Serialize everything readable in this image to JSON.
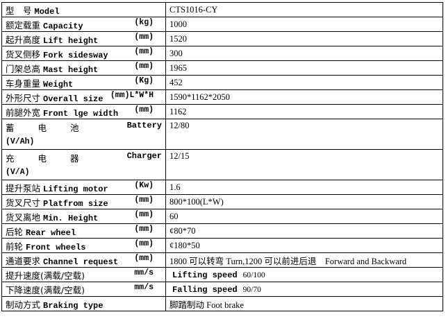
{
  "table": {
    "rows": [
      {
        "cn": "型　号",
        "en": "Model",
        "value": "CTS1016-CY"
      },
      {
        "cn": "额定载重",
        "en": "Capacity",
        "unit": "(kg)",
        "value": "1000"
      },
      {
        "cn": "起升高度",
        "en": "Lift height",
        "unit": "(mm)",
        "value": "1520"
      },
      {
        "cn": "货叉侧移",
        "en": "Fork sidesway",
        "unit": "(mm)",
        "value": "300"
      },
      {
        "cn": "门架总高",
        "en": "Mast height",
        "unit": "(mm)",
        "value": "1965"
      },
      {
        "cn": "车身重量",
        "en": "Weight",
        "unit": "(Kg)",
        "value": "452"
      },
      {
        "cn": "外形尺寸",
        "en": "Overall size",
        "unit": "(mm)L*W*H",
        "value": "1590*1162*2050"
      },
      {
        "cn": "前腿外宽",
        "en": "Front lge width",
        "unit": "(mm)",
        "value": "1162"
      },
      {
        "cn": "蓄电池",
        "en": "Battery",
        "unit": "(V/Ah)",
        "value": "12/80"
      },
      {
        "cn": "充电器",
        "en": "Charger",
        "unit": "(V/A)",
        "value": "12/15"
      },
      {
        "cn": "提升泵站",
        "en": "Lifting motor",
        "unit": "(Kw)",
        "value": "1.6"
      },
      {
        "cn": "货叉尺寸",
        "en": "Platfrom size",
        "unit": "(mm)",
        "value": "800*100(L*W)"
      },
      {
        "cn": "货叉离地",
        "en": "Min. Height",
        "unit": "(mm)",
        "value": "60"
      },
      {
        "cn": "后轮",
        "en": "Rear wheel",
        "unit": "(mm)",
        "value": "¢80*70"
      },
      {
        "cn": "前轮",
        "en": "Front wheels",
        "unit": "(mm)",
        "value": "¢180*50"
      },
      {
        "cn": "通道要求",
        "en": "Channel request",
        "unit": "(mm)",
        "value": "1800 可以转弯 Turn,1200 可以前进后退　Forward and Backward"
      },
      {
        "cn": "提升速度(满载/空载)",
        "unit": "mm/s",
        "value_en": "Lifting speed",
        "value": "60/100"
      },
      {
        "cn": "下降速度(满载/空载)",
        "unit": "mm/s",
        "value_en": "Falling speed",
        "value": "90/70"
      },
      {
        "cn": "制动方式",
        "en": "Braking type",
        "value": "脚踏制动 Foot brake"
      }
    ]
  }
}
